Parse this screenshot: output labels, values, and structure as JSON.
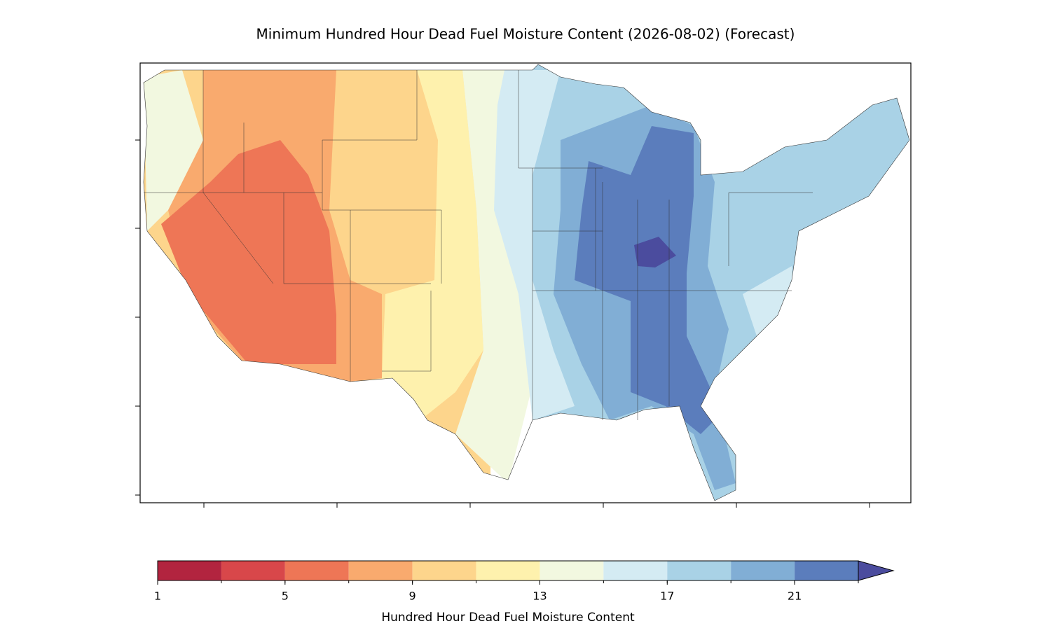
{
  "title": "Minimum Hundred Hour Dead Fuel Moisture Content (2026-08-02) (Forecast)",
  "colorbar": {
    "label": "Hundred Hour Dead Fuel Moisture Content",
    "bounds": [
      1,
      3,
      5,
      7,
      9,
      11,
      13,
      15,
      17,
      19,
      21,
      23
    ],
    "colors": [
      "#b2243f",
      "#d8474a",
      "#ee7656",
      "#f9aa6e",
      "#fdd58c",
      "#fef1ad",
      "#f2f8e0",
      "#d4ebf3",
      "#a9d2e6",
      "#81aed5",
      "#5b7dbc"
    ],
    "extend": "max",
    "extend_color": "#4b4c9e",
    "ticks": [
      1,
      5,
      9,
      13,
      17,
      21
    ]
  }
}
